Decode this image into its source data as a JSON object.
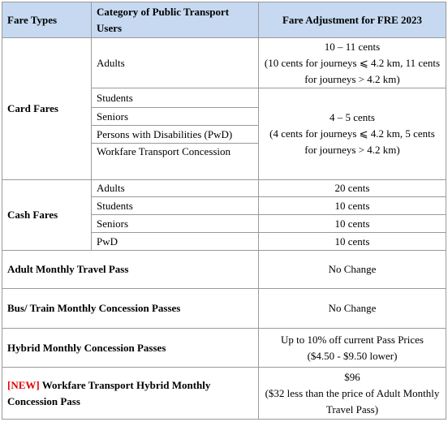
{
  "table": {
    "header": [
      "Fare Types",
      "Category of Public Transport Users",
      "Fare Adjustment for FRE 2023"
    ],
    "card_fares": {
      "label": "Card Fares",
      "adults": "Adults",
      "adults_fare": [
        "10 – 11 cents",
        "(10 cents for journeys ⩽ 4.2 km, 11 cents for journeys > 4.2 km)"
      ],
      "concession_categories": [
        "Students",
        "Seniors",
        "Persons with Disabilities (PwD)",
        "Workfare Transport Concession"
      ],
      "concession_fare": [
        "4 – 5 cents",
        "(4 cents for journeys ⩽ 4.2 km, 5 cents for journeys > 4.2 km)"
      ]
    },
    "cash_fares": {
      "label": "Cash Fares",
      "rows": [
        [
          "Adults",
          "20 cents"
        ],
        [
          "Students",
          "10 cents"
        ],
        [
          "Seniors",
          "10 cents"
        ],
        [
          "PwD",
          "10 cents"
        ]
      ]
    },
    "passes": [
      {
        "label": "Adult Monthly Travel Pass",
        "fare": [
          "No Change"
        ]
      },
      {
        "label": "Bus/ Train Monthly Concession Passes",
        "fare": [
          "No Change"
        ]
      },
      {
        "label": "Hybrid Monthly Concession Passes",
        "fare": [
          "Up to 10% off current Pass Prices",
          "($4.50 - $9.50 lower)"
        ]
      },
      {
        "tag": "[NEW]",
        "label": "Workfare Transport Hybrid Monthly Concession Pass",
        "fare": [
          "$96",
          "($32 less than the price of Adult Monthly Travel Pass)"
        ]
      }
    ]
  }
}
